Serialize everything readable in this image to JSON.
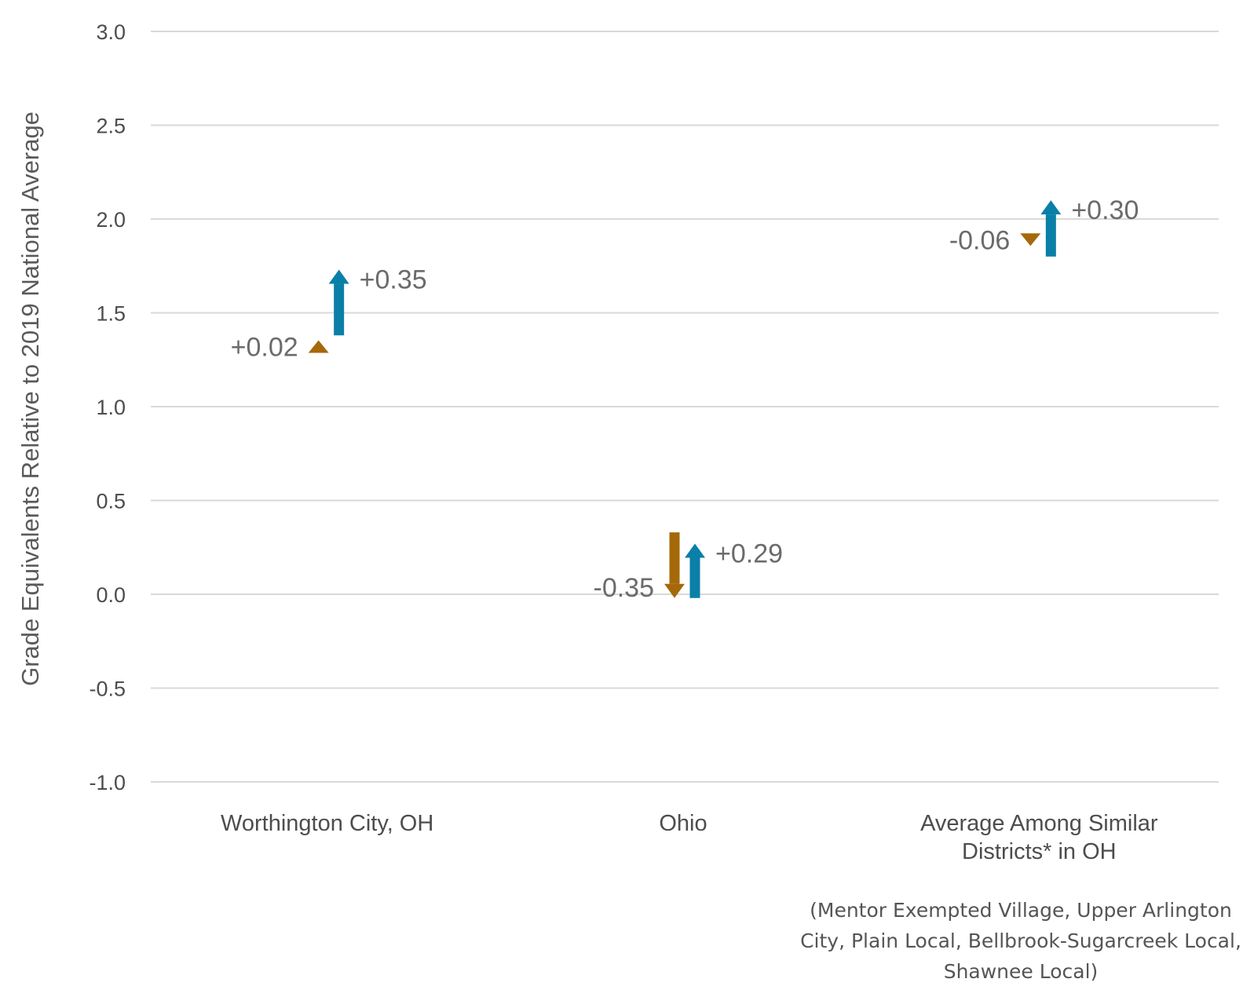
{
  "chart_data": {
    "type": "arrow",
    "ylabel": "Grade Equivalents Relative to 2019 National Average",
    "xlabel": "",
    "ylim": [
      -1.0,
      3.0
    ],
    "yticks": [
      -1.0,
      -0.5,
      0.0,
      0.5,
      1.0,
      1.5,
      2.0,
      2.5,
      3.0
    ],
    "ytick_labels": [
      "-1.0",
      "-0.5",
      "0.0",
      "0.5",
      "1.0",
      "1.5",
      "2.0",
      "2.5",
      "3.0"
    ],
    "grid": true,
    "categories": [
      {
        "lines": [
          "Worthington City, OH"
        ]
      },
      {
        "lines": [
          "Ohio"
        ]
      },
      {
        "lines": [
          "Average Among Similar",
          "Districts* in OH"
        ]
      }
    ],
    "series": [
      {
        "color": "#a5690a",
        "arrows": [
          {
            "start": 1.31,
            "end": 1.33,
            "label": "+0.02"
          },
          {
            "start": 0.33,
            "end": -0.02,
            "label": "-0.35"
          },
          {
            "start": 1.92,
            "end": 1.86,
            "label": "-0.06"
          }
        ]
      },
      {
        "color": "#0a7fa8",
        "arrows": [
          {
            "start": 1.38,
            "end": 1.73,
            "label": "+0.35"
          },
          {
            "start": -0.02,
            "end": 0.27,
            "label": "+0.29"
          },
          {
            "start": 1.8,
            "end": 2.1,
            "label": "+0.30"
          }
        ]
      }
    ],
    "footnote": "(Mentor Exempted Village, Upper Arlington City, Plain Local, Bellbrook-Sugarcreek Local, Shawnee Local)"
  }
}
